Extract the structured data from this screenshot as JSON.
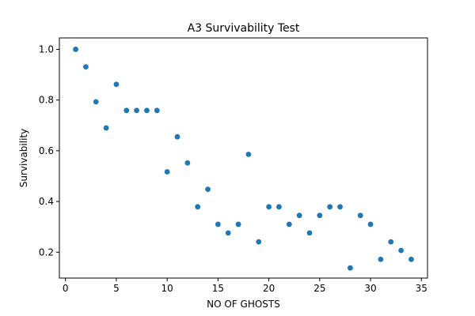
{
  "chart_data": {
    "type": "scatter",
    "title": "A3 Survivability Test",
    "xlabel": "NO OF GHOSTS",
    "ylabel": "Survivability",
    "xlim": [
      -0.6,
      35.6
    ],
    "ylim": [
      0.098,
      1.045
    ],
    "xticks": [
      0,
      5,
      10,
      15,
      20,
      25,
      30,
      35
    ],
    "yticks": [
      0.2,
      0.4,
      0.6,
      0.8,
      1.0
    ],
    "ytick_labels": [
      "0.2",
      "0.4",
      "0.6",
      "0.8",
      "1.0"
    ],
    "grid": false,
    "marker_color": "#1f77b4",
    "series": [
      {
        "x": [
          1,
          2,
          3,
          4,
          5,
          6,
          7,
          8,
          9,
          10,
          11,
          12,
          13,
          14,
          15,
          16,
          17,
          18,
          19,
          20,
          21,
          22,
          23,
          24,
          25,
          26,
          27,
          28,
          29,
          30,
          31,
          32,
          33,
          34
        ],
        "y": [
          1.0,
          0.931,
          0.793,
          0.69,
          0.862,
          0.759,
          0.759,
          0.759,
          0.759,
          0.517,
          0.655,
          0.552,
          0.379,
          0.448,
          0.31,
          0.276,
          0.31,
          0.586,
          0.241,
          0.379,
          0.379,
          0.31,
          0.345,
          0.276,
          0.345,
          0.379,
          0.379,
          0.138,
          0.345,
          0.31,
          0.172,
          0.241,
          0.207,
          0.172
        ]
      }
    ]
  }
}
